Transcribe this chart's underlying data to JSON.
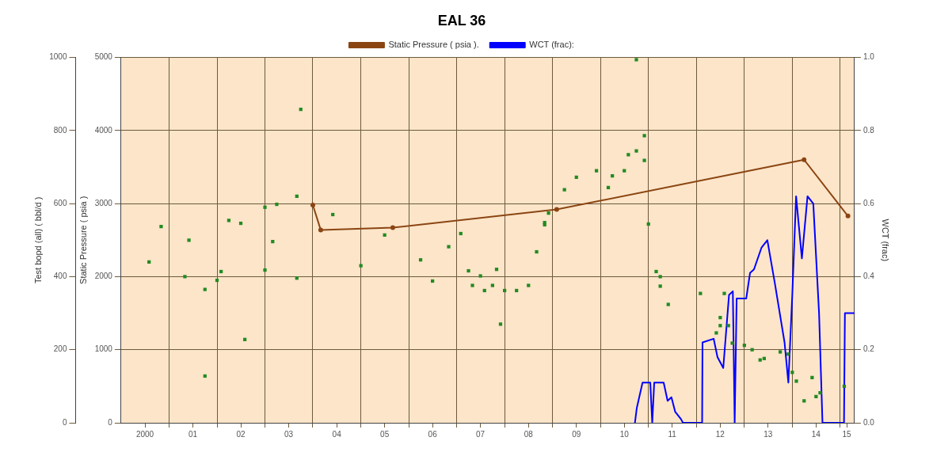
{
  "chart_data": {
    "type": "line",
    "title": "EAL 36",
    "ylabel": "Static Pressure ( psia )",
    "y2label": "WCT (frac)",
    "y3label": "Test bopd (all) ( bbl/d )",
    "xlim": [
      "2000-01-01",
      "2015-04-20"
    ],
    "xticks": [
      {
        "value": "2000-07-01",
        "label": "2000"
      },
      {
        "value": "2001-01-01",
        "label": null
      },
      {
        "value": "2001-07-01",
        "label": "01"
      },
      {
        "value": "2002-01-01",
        "label": null
      },
      {
        "value": "2002-07-01",
        "label": "02"
      },
      {
        "value": "2003-01-01",
        "label": null
      },
      {
        "value": "2003-07-01",
        "label": "03"
      },
      {
        "value": "2004-01-01",
        "label": null
      },
      {
        "value": "2004-07-01",
        "label": "04"
      },
      {
        "value": "2005-01-01",
        "label": null
      },
      {
        "value": "2005-07-01",
        "label": "05"
      },
      {
        "value": "2006-01-01",
        "label": null
      },
      {
        "value": "2006-07-01",
        "label": "06"
      },
      {
        "value": "2007-01-01",
        "label": null
      },
      {
        "value": "2007-07-01",
        "label": "07"
      },
      {
        "value": "2008-01-01",
        "label": null
      },
      {
        "value": "2008-07-01",
        "label": "08"
      },
      {
        "value": "2009-01-01",
        "label": null
      },
      {
        "value": "2009-07-01",
        "label": "09"
      },
      {
        "value": "2010-01-01",
        "label": null
      },
      {
        "value": "2010-07-01",
        "label": "10"
      },
      {
        "value": "2011-01-01",
        "label": null
      },
      {
        "value": "2011-07-01",
        "label": "11"
      },
      {
        "value": "2012-01-01",
        "label": null
      },
      {
        "value": "2012-07-01",
        "label": "12"
      },
      {
        "value": "2013-01-01",
        "label": null
      },
      {
        "value": "2013-07-01",
        "label": "13"
      },
      {
        "value": "2014-01-01",
        "label": null
      },
      {
        "value": "2014-07-01",
        "label": "14"
      },
      {
        "value": "2015-01-01",
        "label": null
      },
      {
        "value": "2015-02-20",
        "label": "15"
      }
    ],
    "ylim": [
      0,
      5000
    ],
    "yticks": [
      0,
      1000,
      2000,
      3000,
      4000,
      5000
    ],
    "y2lim": [
      0,
      1
    ],
    "y2ticks": [
      {
        "value": 0,
        "label": "0.0"
      },
      {
        "value": 0.2,
        "label": "0.2"
      },
      {
        "value": 0.4,
        "label": "0.4"
      },
      {
        "value": 0.6,
        "label": "0.6"
      },
      {
        "value": 0.8,
        "label": "0.8"
      },
      {
        "value": 1,
        "label": "1.0"
      }
    ],
    "y3lim": [
      0,
      1000
    ],
    "y3ticks": [
      0,
      200,
      400,
      600,
      800,
      1000
    ],
    "grid": true,
    "legend": "top",
    "series": [
      {
        "name": "Static Pressure ( psia ).",
        "color": "#8b4513",
        "marker": "circle",
        "line_style": "solid",
        "x": [
          "2004-01",
          "2004-03",
          "2005-09",
          "2009-02",
          "2014-04",
          "2015-03"
        ],
        "values": [
          2980,
          2640,
          2670,
          2920,
          3600,
          2830
        ]
      },
      {
        "type": "scatter",
        "axis": "y3",
        "color": "#228b22",
        "marker": "square",
        "x": [
          "2000-08",
          "2000-11",
          "2001-05",
          "2001-06",
          "2001-10",
          "2001-10",
          "2002-01",
          "2002-02",
          "2002-04",
          "2002-07",
          "2002-08",
          "2003-01",
          "2003-01",
          "2003-04",
          "2003-03",
          "2003-09",
          "2003-09",
          "2003-10",
          "2004-06",
          "2005-01",
          "2005-07",
          "2006-04",
          "2006-07",
          "2006-11",
          "2007-02",
          "2007-04",
          "2007-05",
          "2007-07",
          "2007-08",
          "2007-10",
          "2007-11",
          "2007-12",
          "2008-01",
          "2008-04",
          "2008-07",
          "2008-09",
          "2008-11",
          "2008-11",
          "2008-12",
          "2009-04",
          "2009-07",
          "2009-12",
          "2010-03",
          "2010-04",
          "2010-07",
          "2010-08",
          "2010-10",
          "2010-10",
          "2010-12",
          "2010-12",
          "2011-01",
          "2011-03",
          "2011-04",
          "2011-04",
          "2011-06",
          "2012-02",
          "2012-08",
          "2012-07",
          "2012-06",
          "2012-07",
          "2012-09",
          "2012-10",
          "2013-01",
          "2013-03",
          "2013-05",
          "2013-06",
          "2013-10",
          "2013-12",
          "2014-01",
          "2014-02",
          "2014-06",
          "2014-04",
          "2014-07",
          "2014-08",
          "2015-02"
        ],
        "values": [
          440,
          537,
          400,
          500,
          365,
          128,
          390,
          414,
          554,
          546,
          228,
          418,
          590,
          598,
          496,
          396,
          620,
          858,
          570,
          430,
          514,
          446,
          388,
          482,
          518,
          416,
          376,
          402,
          362,
          376,
          420,
          270,
          362,
          362,
          376,
          468,
          548,
          542,
          574,
          638,
          672,
          690,
          644,
          676,
          690,
          734,
          994,
          744,
          786,
          718,
          544,
          414,
          400,
          374,
          324,
          354,
          354,
          288,
          246,
          266,
          266,
          218,
          212,
          200,
          172,
          176,
          194,
          188,
          138,
          114,
          124,
          60,
          72,
          82,
          100
        ]
      },
      {
        "name": "WCT (frac):",
        "axis": "y2",
        "color": "#0000ff",
        "marker": "none",
        "line_style": "solid",
        "x": [
          "2010-09-20",
          "2010-10-04",
          "2010-11-17",
          "2011-01-15",
          "2011-01-30",
          "2011-02-14",
          "2011-04-27",
          "2011-05-27",
          "2011-06-25",
          "2011-07-24",
          "2011-09-06",
          "2011-09-21",
          "2012-02-14",
          "2012-02-17",
          "2012-05-12",
          "2012-06-10",
          "2012-07-24",
          "2012-09-06",
          "2012-10-05",
          "2012-10-19",
          "2012-11-03",
          "2013-01-15",
          "2013-02-13",
          "2013-03-15",
          "2013-05-12",
          "2013-06-25",
          "2013-08-22",
          "2013-11-03",
          "2013-12-02",
          "2014-01-01",
          "2014-01-30",
          "2014-03-15",
          "2014-04-27",
          "2014-06-10",
          "2014-07-24",
          "2014-08-19",
          "2015-01-30",
          "2015-02-06",
          "2015-04-20"
        ],
        "values": [
          0,
          0.04,
          0.11,
          0.11,
          0,
          0.11,
          0.11,
          0.06,
          0.07,
          0.03,
          0.01,
          0,
          0,
          0.22,
          0.23,
          0.18,
          0.15,
          0.35,
          0.36,
          0,
          0.34,
          0.34,
          0.41,
          0.42,
          0.48,
          0.5,
          0.38,
          0.22,
          0.11,
          0.35,
          0.62,
          0.45,
          0.62,
          0.6,
          0.3,
          0,
          0,
          0.3,
          0.3
        ]
      }
    ]
  }
}
